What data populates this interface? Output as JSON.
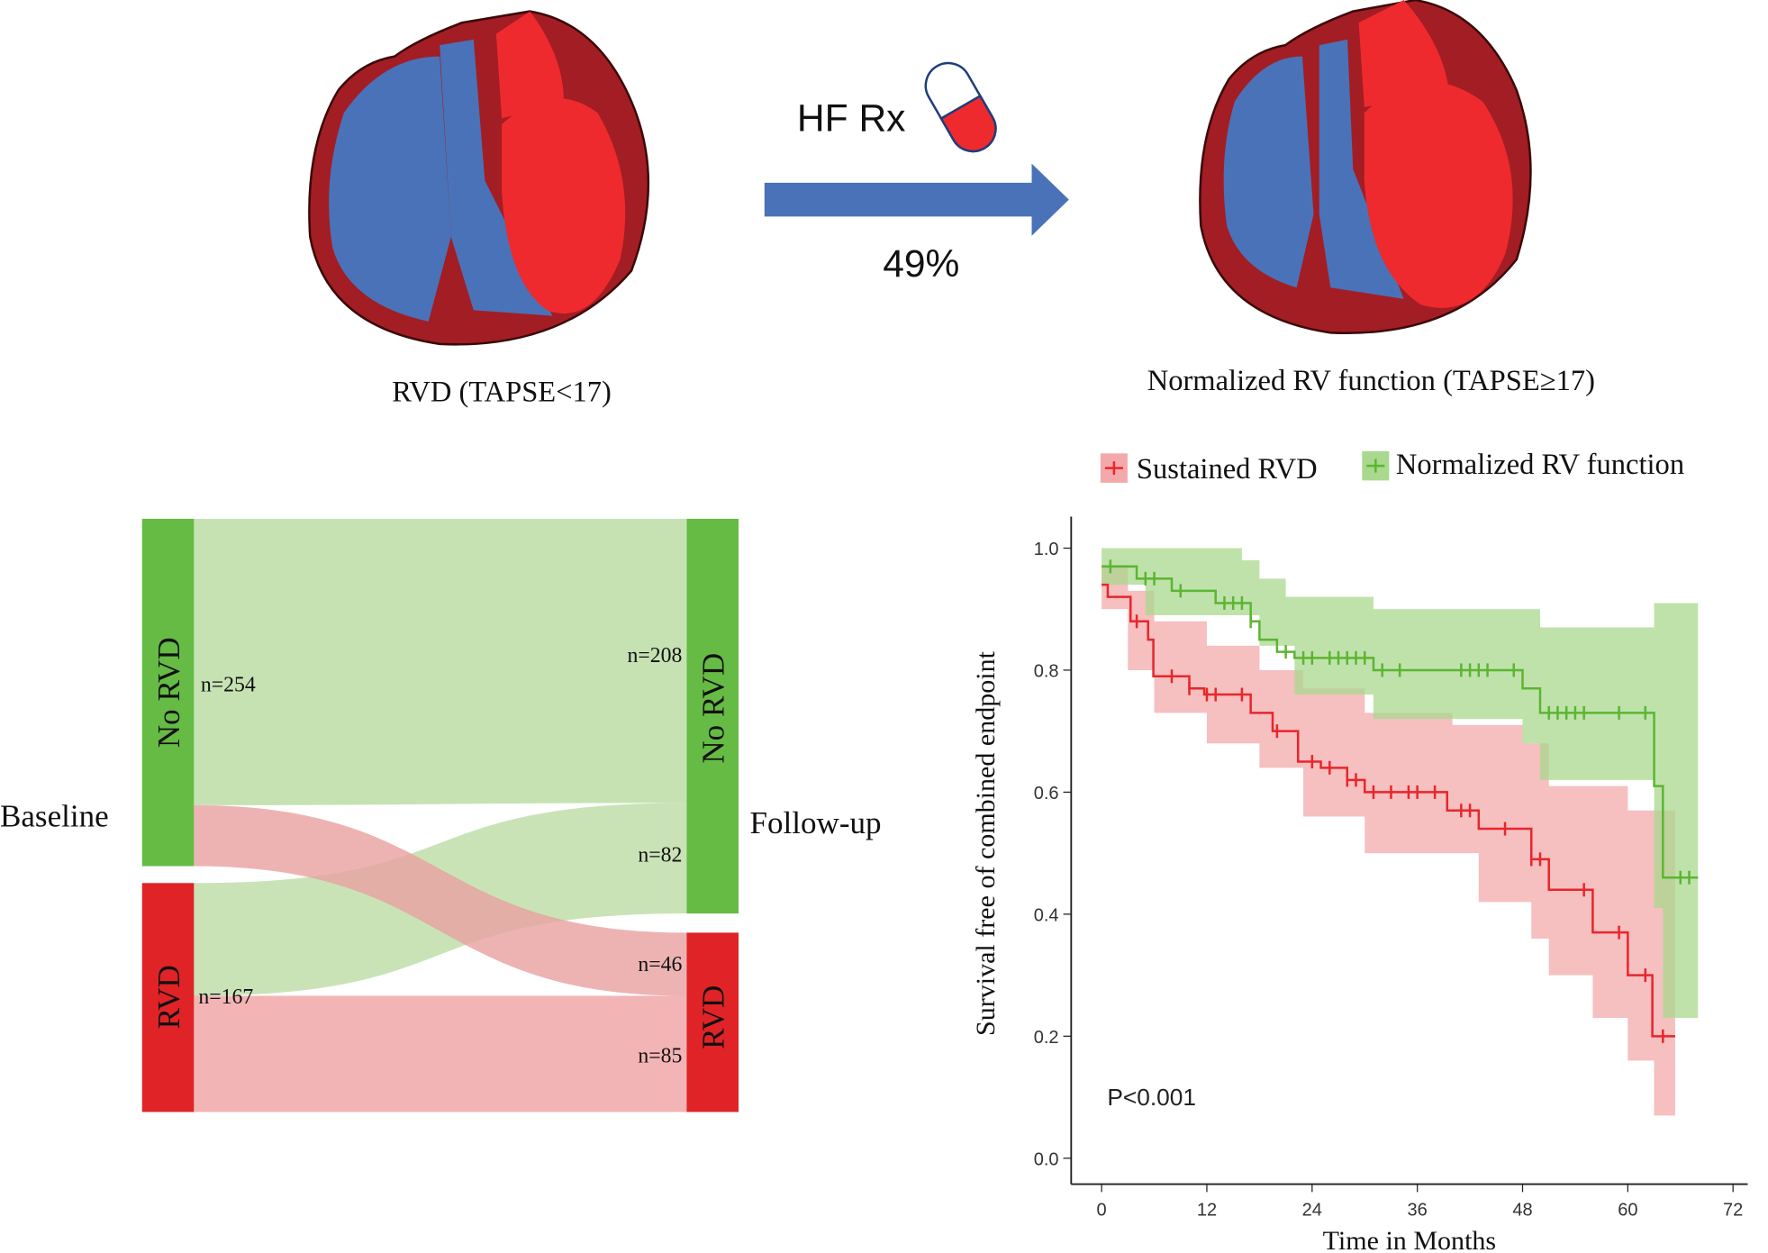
{
  "top": {
    "baseline_label": "RVD (TAPSE<17)",
    "followup_label": "Normalized RV function (TAPSE≥17)",
    "treatment_label": "HF Rx",
    "percent_label": "49%",
    "icons": [
      "heart-rvd-icon",
      "pill-icon",
      "arrow-right-icon",
      "heart-normal-icon"
    ]
  },
  "colors": {
    "blue": "#4a72b8",
    "red": "#ee2a2e",
    "dark_red": "#a31d24",
    "green": "#66bb44",
    "bar_red": "#e02327",
    "flow_green": "#c6e2b3",
    "flow_red": "#f3b4b5"
  },
  "sankey": {
    "left_axis": "Baseline",
    "right_axis": "Follow-up",
    "left_nodes": [
      {
        "label": "No RVD",
        "n": "n=254"
      },
      {
        "label": "RVD",
        "n": "n=167"
      }
    ],
    "right_nodes": [
      {
        "label": "No RVD",
        "n": "n=208"
      },
      {
        "label": "RVD",
        "n": ""
      }
    ],
    "flow_labels": {
      "rvd_to_norvd": "n=82",
      "norvd_to_rvd": "n=46",
      "rvd_to_rvd": "n=85"
    }
  },
  "chart_data": {
    "type": "line",
    "subtype": "kaplan-meier",
    "xlabel": "Time in Months",
    "ylabel": "Survival free of combined endpoint",
    "xlim": [
      0,
      72
    ],
    "ylim": [
      0,
      1
    ],
    "xticks": [
      "0",
      "12",
      "24",
      "36",
      "48",
      "60",
      "72"
    ],
    "yticks": [
      "0.0",
      "0.2",
      "0.4",
      "0.6",
      "0.8",
      "1.0"
    ],
    "grid": false,
    "legend_position": "top",
    "annotation": "P<0.001",
    "series": [
      {
        "name": "Sustained RVD",
        "color": "#e8262b",
        "band_color": "#f3a9ab",
        "steps": [
          [
            0,
            0.94
          ],
          [
            0.7,
            0.92
          ],
          [
            3.3,
            0.88
          ],
          [
            5.3,
            0.85
          ],
          [
            5.9,
            0.79
          ],
          [
            10,
            0.77
          ],
          [
            11.7,
            0.76
          ],
          [
            17,
            0.73
          ],
          [
            19.5,
            0.7
          ],
          [
            22.4,
            0.65
          ],
          [
            25,
            0.64
          ],
          [
            28,
            0.62
          ],
          [
            30,
            0.6
          ],
          [
            39.4,
            0.57
          ],
          [
            43,
            0.54
          ],
          [
            49,
            0.49
          ],
          [
            51,
            0.44
          ],
          [
            56,
            0.37
          ],
          [
            60,
            0.3
          ],
          [
            62.8,
            0.2
          ],
          [
            65.4,
            0.2
          ]
        ],
        "ci_upper": [
          [
            0,
            0.97
          ],
          [
            3,
            0.93
          ],
          [
            6,
            0.88
          ],
          [
            12,
            0.84
          ],
          [
            18,
            0.8
          ],
          [
            23,
            0.77
          ],
          [
            30,
            0.73
          ],
          [
            40,
            0.71
          ],
          [
            48,
            0.68
          ],
          [
            51,
            0.61
          ],
          [
            60,
            0.57
          ],
          [
            63,
            0.57
          ],
          [
            65.4,
            0.57
          ]
        ],
        "ci_lower": [
          [
            0,
            0.9
          ],
          [
            3,
            0.8
          ],
          [
            6,
            0.73
          ],
          [
            12,
            0.68
          ],
          [
            18,
            0.64
          ],
          [
            23,
            0.56
          ],
          [
            30,
            0.5
          ],
          [
            43,
            0.42
          ],
          [
            49,
            0.36
          ],
          [
            51,
            0.3
          ],
          [
            56,
            0.23
          ],
          [
            60,
            0.16
          ],
          [
            63,
            0.07
          ],
          [
            65.4,
            0.07
          ]
        ],
        "censored": [
          4,
          8,
          10,
          12,
          13,
          16,
          20,
          24,
          26,
          28,
          29,
          31,
          33,
          35,
          36,
          38,
          41,
          42,
          46,
          49,
          50,
          55,
          59,
          62,
          64
        ]
      },
      {
        "name": "Normalized RV function",
        "color": "#5cb531",
        "band_color": "#a9d88f",
        "steps": [
          [
            0,
            0.97
          ],
          [
            4,
            0.95
          ],
          [
            8,
            0.93
          ],
          [
            13,
            0.91
          ],
          [
            17,
            0.88
          ],
          [
            18,
            0.85
          ],
          [
            20,
            0.83
          ],
          [
            22,
            0.82
          ],
          [
            31,
            0.8
          ],
          [
            48,
            0.77
          ],
          [
            50,
            0.73
          ],
          [
            63,
            0.61
          ],
          [
            64,
            0.46
          ],
          [
            68,
            0.46
          ]
        ],
        "ci_upper": [
          [
            0,
            1.0
          ],
          [
            16,
            0.98
          ],
          [
            18,
            0.95
          ],
          [
            21,
            0.92
          ],
          [
            31,
            0.9
          ],
          [
            50,
            0.87
          ],
          [
            63,
            0.91
          ],
          [
            68,
            0.91
          ]
        ],
        "ci_lower": [
          [
            0,
            0.94
          ],
          [
            5,
            0.89
          ],
          [
            18,
            0.84
          ],
          [
            22,
            0.76
          ],
          [
            31,
            0.72
          ],
          [
            48,
            0.68
          ],
          [
            50,
            0.62
          ],
          [
            63,
            0.41
          ],
          [
            64,
            0.23
          ],
          [
            68,
            0.23
          ]
        ],
        "censored": [
          1,
          5,
          6,
          9,
          14,
          15,
          16,
          17,
          21,
          23,
          24,
          26,
          27,
          28,
          29,
          30,
          32,
          34,
          41,
          42,
          43,
          44,
          47,
          51,
          52,
          53,
          54,
          55,
          59,
          62,
          66,
          67
        ]
      }
    ]
  }
}
